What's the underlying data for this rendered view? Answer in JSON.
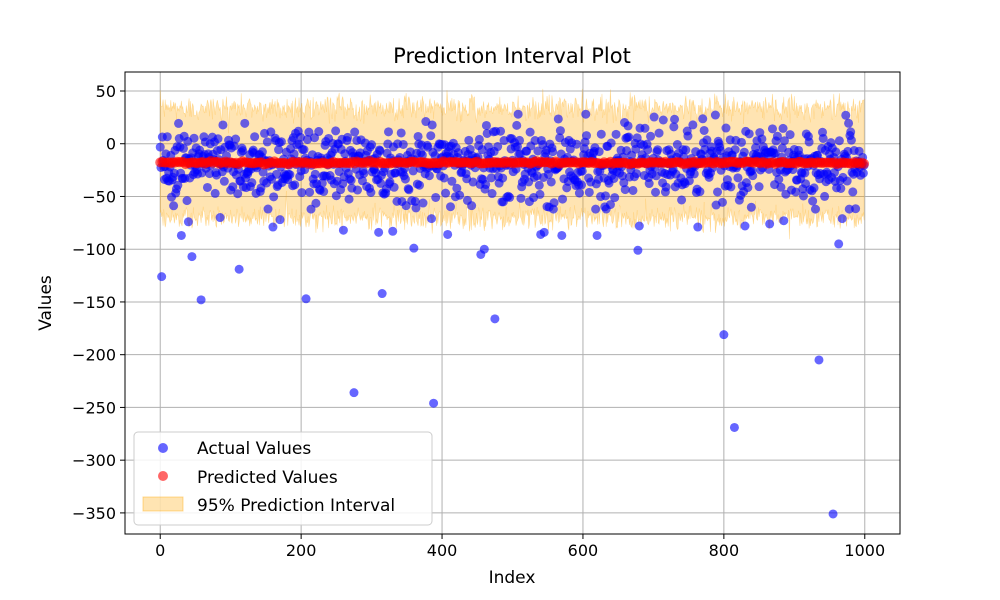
{
  "chart_data": {
    "type": "scatter",
    "title": "Prediction Interval Plot",
    "xlabel": "Index",
    "ylabel": "Values",
    "xlim": [
      -50,
      1050
    ],
    "ylim": [
      -370,
      68
    ],
    "grid": true,
    "x_ticks": [
      0,
      200,
      400,
      600,
      800,
      1000
    ],
    "x_tick_labels": [
      "0",
      "200",
      "400",
      "600",
      "800",
      "1000"
    ],
    "y_ticks": [
      50,
      0,
      -50,
      -100,
      -150,
      -200,
      -250,
      -300,
      -350
    ],
    "y_tick_labels": [
      "50",
      "0",
      "−50",
      "−100",
      "−150",
      "−200",
      "−250",
      "−300",
      "−350"
    ],
    "legend_position": "lower-left",
    "legend": [
      "Actual Values",
      "Predicted Values",
      "95% Prediction Interval"
    ],
    "colors": {
      "actual": "#0000ff",
      "predicted": "#ff0000",
      "interval": "#ffa500",
      "grid": "#b0b0b0"
    },
    "n_points": 1000,
    "predicted_value": -18,
    "interval": {
      "center": -18,
      "half_width_mean": 52,
      "half_width_jitter": 6
    },
    "actual_main": {
      "center": -18,
      "spread": 30
    },
    "actual_outliers": [
      {
        "x": 2,
        "y": -126
      },
      {
        "x": 30,
        "y": -87
      },
      {
        "x": 40,
        "y": -74
      },
      {
        "x": 45,
        "y": -107
      },
      {
        "x": 58,
        "y": -148
      },
      {
        "x": 85,
        "y": -70
      },
      {
        "x": 112,
        "y": -119
      },
      {
        "x": 160,
        "y": -79
      },
      {
        "x": 170,
        "y": -72
      },
      {
        "x": 207,
        "y": -147
      },
      {
        "x": 260,
        "y": -82
      },
      {
        "x": 275,
        "y": -236
      },
      {
        "x": 310,
        "y": -84
      },
      {
        "x": 315,
        "y": -142
      },
      {
        "x": 330,
        "y": -83
      },
      {
        "x": 360,
        "y": -99
      },
      {
        "x": 385,
        "y": -71
      },
      {
        "x": 388,
        "y": -246
      },
      {
        "x": 408,
        "y": -86
      },
      {
        "x": 455,
        "y": -105
      },
      {
        "x": 460,
        "y": -100
      },
      {
        "x": 475,
        "y": -166
      },
      {
        "x": 540,
        "y": -86
      },
      {
        "x": 545,
        "y": -84
      },
      {
        "x": 570,
        "y": -87
      },
      {
        "x": 620,
        "y": -87
      },
      {
        "x": 678,
        "y": -101
      },
      {
        "x": 680,
        "y": -78
      },
      {
        "x": 763,
        "y": -79
      },
      {
        "x": 800,
        "y": -181
      },
      {
        "x": 815,
        "y": -269
      },
      {
        "x": 830,
        "y": -78
      },
      {
        "x": 865,
        "y": -76
      },
      {
        "x": 885,
        "y": -73
      },
      {
        "x": 930,
        "y": -62
      },
      {
        "x": 935,
        "y": -205
      },
      {
        "x": 955,
        "y": -351
      },
      {
        "x": 963,
        "y": -95
      },
      {
        "x": 968,
        "y": -71
      }
    ]
  }
}
